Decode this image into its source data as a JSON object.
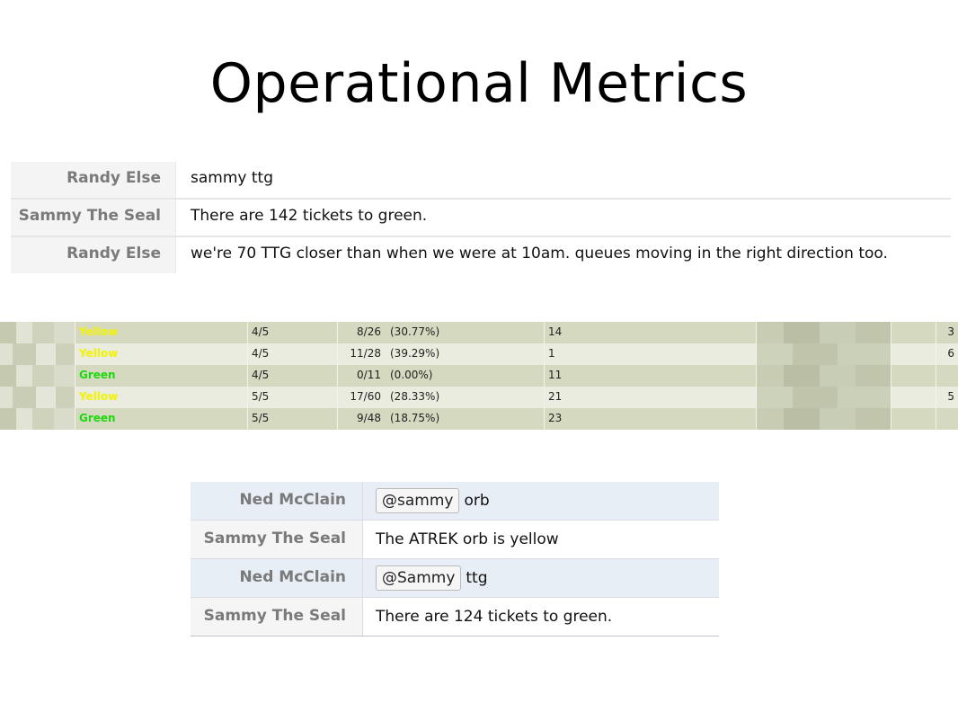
{
  "slide": {
    "title": "Operational Metrics"
  },
  "chat1": [
    {
      "name": "Randy Else",
      "message": "sammy ttg"
    },
    {
      "name": "Sammy The Seal",
      "message": "There are 142 tickets to green."
    },
    {
      "name": "Randy Else",
      "message": "we're 70 TTG closer than when we were at 10am. queues moving in the right direction too."
    }
  ],
  "status_table": {
    "rows": [
      {
        "status": "Yellow",
        "status_color": "#f3f300",
        "score": "4/5",
        "fraction": "8/26",
        "percent": "(30.77%)",
        "count": "14",
        "last": "3"
      },
      {
        "status": "Yellow",
        "status_color": "#f3f300",
        "score": "4/5",
        "fraction": "11/28",
        "percent": "(39.29%)",
        "count": "1",
        "last": "6"
      },
      {
        "status": "Green",
        "status_color": "#1ed90e",
        "score": "4/5",
        "fraction": "0/11",
        "percent": "(0.00%)",
        "count": "11",
        "last": ""
      },
      {
        "status": "Yellow",
        "status_color": "#f3f300",
        "score": "5/5",
        "fraction": "17/60",
        "percent": "(28.33%)",
        "count": "21",
        "last": "5"
      },
      {
        "status": "Green",
        "status_color": "#1ed90e",
        "score": "5/5",
        "fraction": "9/48",
        "percent": "(18.75%)",
        "count": "23",
        "last": ""
      }
    ]
  },
  "chat2": [
    {
      "name": "Ned McClain",
      "mention": "@sammy",
      "message": "orb"
    },
    {
      "name": "Sammy The Seal",
      "mention": "",
      "message": "The ATREK orb is yellow"
    },
    {
      "name": "Ned McClain",
      "mention": "@Sammy",
      "message": "ttg"
    },
    {
      "name": "Sammy The Seal",
      "mention": "",
      "message": "There are 124 tickets to green."
    }
  ],
  "colors": {
    "yellow_status": "#f3f300",
    "green_status": "#1ed90e",
    "table_band_dark": "#d4d9bf",
    "table_band_light": "#e9ecde",
    "chat2_highlight": "#e8eef6"
  }
}
